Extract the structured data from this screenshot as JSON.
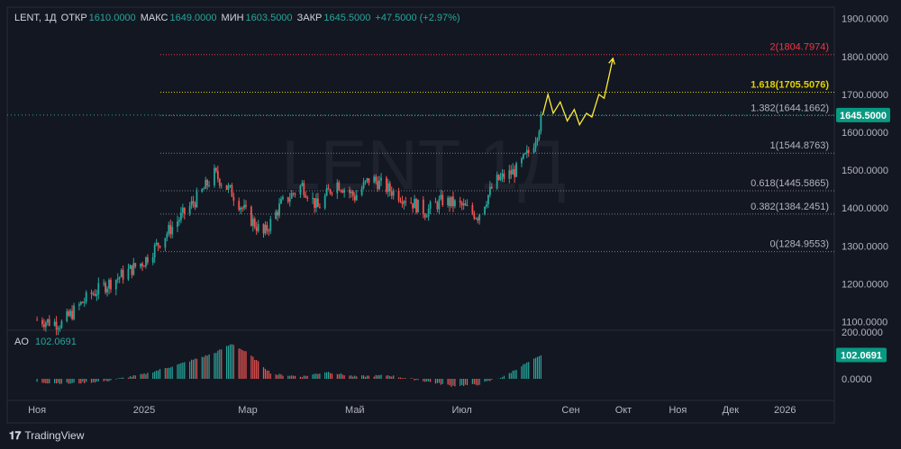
{
  "header": {
    "symbol": "LENT, 1Д",
    "open_label": "ОТКР",
    "open": "1610.0000",
    "high_label": "МАКС",
    "high": "1649.0000",
    "low_label": "МИН",
    "low": "1603.5000",
    "close_label": "ЗАКР",
    "close": "1645.5000",
    "change": "+47.5000 (+2.97%)"
  },
  "watermark": "LENT 1Д",
  "ao": {
    "label": "AO",
    "value": "102.0691"
  },
  "brand": "TradingView",
  "colors": {
    "bg": "#131722",
    "up": "#26a69a",
    "down": "#ef5350",
    "fib": "#787b86",
    "fib_key": "#e0d000",
    "fib_top": "#f23645",
    "projection": "#ffeb3b",
    "price_badge": "#089981"
  },
  "chart_data": {
    "type": "candlestick",
    "price_axis": {
      "min": 1080,
      "max": 1930,
      "ticks": [
        "1100.0000",
        "1200.0000",
        "1300.0000",
        "1400.0000",
        "1500.0000",
        "1600.0000",
        "1700.0000",
        "1800.0000",
        "1900.0000"
      ]
    },
    "time_axis": [
      "Ноя",
      "2025",
      "Мар",
      "Май",
      "Июл",
      "Сен",
      "Окт",
      "Ноя",
      "Дек",
      "2026"
    ],
    "last_price": "1645.5000",
    "fib_levels": [
      {
        "label": "0(1284.9553)",
        "value": 1284.9553,
        "style": "gray"
      },
      {
        "label": "0.382(1384.2451)",
        "value": 1384.2451,
        "style": "gray"
      },
      {
        "label": "0.618(1445.5865)",
        "value": 1445.5865,
        "style": "gray"
      },
      {
        "label": "1(1544.8763)",
        "value": 1544.8763,
        "style": "gray"
      },
      {
        "label": "1.382(1644.1662)",
        "value": 1644.1662,
        "style": "gray"
      },
      {
        "label": "1.618(1705.5076)",
        "value": 1705.5076,
        "style": "key"
      },
      {
        "label": "2(1804.7974)",
        "value": 1804.7974,
        "style": "top"
      }
    ],
    "price_path": [
      [
        "2024-11-01",
        1105
      ],
      [
        "2024-11-15",
        1095
      ],
      [
        "2024-12-01",
        1170
      ],
      [
        "2024-12-15",
        1210
      ],
      [
        "2025-01-01",
        1260
      ],
      [
        "2025-01-15",
        1340
      ],
      [
        "2025-02-01",
        1430
      ],
      [
        "2025-02-10",
        1490
      ],
      [
        "2025-02-20",
        1440
      ],
      [
        "2025-03-01",
        1380
      ],
      [
        "2025-03-10",
        1330
      ],
      [
        "2025-03-20",
        1410
      ],
      [
        "2025-04-01",
        1460
      ],
      [
        "2025-04-10",
        1400
      ],
      [
        "2025-04-20",
        1470
      ],
      [
        "2025-05-01",
        1430
      ],
      [
        "2025-05-10",
        1480
      ],
      [
        "2025-05-20",
        1450
      ],
      [
        "2025-06-01",
        1420
      ],
      [
        "2025-06-10",
        1390
      ],
      [
        "2025-06-20",
        1420
      ],
      [
        "2025-07-01",
        1405
      ],
      [
        "2025-07-10",
        1380
      ],
      [
        "2025-07-20",
        1470
      ],
      [
        "2025-08-01",
        1500
      ],
      [
        "2025-08-10",
        1560
      ],
      [
        "2025-08-16",
        1645.5
      ]
    ],
    "projection": [
      [
        "2025-08-16",
        1645
      ],
      [
        "2025-08-19",
        1700
      ],
      [
        "2025-08-22",
        1650
      ],
      [
        "2025-08-26",
        1680
      ],
      [
        "2025-08-30",
        1630
      ],
      [
        "2025-09-03",
        1660
      ],
      [
        "2025-09-06",
        1620
      ],
      [
        "2025-09-10",
        1650
      ],
      [
        "2025-09-13",
        1640
      ],
      [
        "2025-09-17",
        1700
      ],
      [
        "2025-09-20",
        1690
      ],
      [
        "2025-09-25",
        1795
      ]
    ],
    "ao_axis": {
      "ticks": [
        "0.0000",
        "200.0000"
      ],
      "last": "102.0691"
    }
  }
}
